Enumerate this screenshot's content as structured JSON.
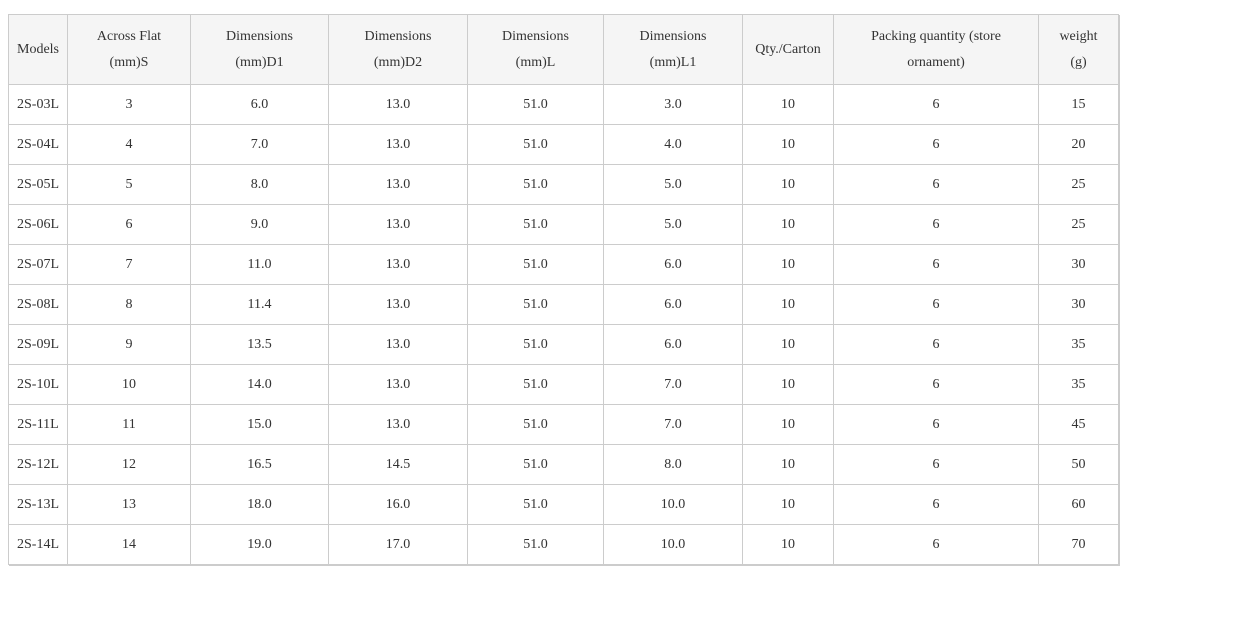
{
  "colors": {
    "header_bg": "#f5f5f5",
    "border": "#cccccc",
    "text": "#333333",
    "page_bg": "#ffffff"
  },
  "table": {
    "columns": [
      {
        "id": "model",
        "label": "Models",
        "label_lines": [
          "Models"
        ]
      },
      {
        "id": "s",
        "label": "Across Flat (mm)S",
        "label_lines": [
          "Across Flat",
          "(mm)S"
        ]
      },
      {
        "id": "d1",
        "label": "Dimensions (mm)D1",
        "label_lines": [
          "Dimensions",
          "(mm)D1"
        ]
      },
      {
        "id": "d2",
        "label": "Dimensions (mm)D2",
        "label_lines": [
          "Dimensions",
          "(mm)D2"
        ]
      },
      {
        "id": "l",
        "label": "Dimensions (mm)L",
        "label_lines": [
          "Dimensions",
          "(mm)L"
        ]
      },
      {
        "id": "l1",
        "label": "Dimensions (mm)L1",
        "label_lines": [
          "Dimensions",
          "(mm)L1"
        ]
      },
      {
        "id": "qty",
        "label": "Qty./Carton",
        "label_lines": [
          "Qty./Carton"
        ]
      },
      {
        "id": "pack",
        "label": "Packing quantity (store ornament)",
        "label_lines": [
          "Packing quantity (store",
          "ornament)"
        ]
      },
      {
        "id": "weight",
        "label": "weight (g)",
        "label_lines": [
          "weight",
          "(g)"
        ]
      }
    ],
    "rows": [
      [
        "2S-03L",
        "3",
        "6.0",
        "13.0",
        "51.0",
        "3.0",
        "10",
        "6",
        "15"
      ],
      [
        "2S-04L",
        "4",
        "7.0",
        "13.0",
        "51.0",
        "4.0",
        "10",
        "6",
        "20"
      ],
      [
        "2S-05L",
        "5",
        "8.0",
        "13.0",
        "51.0",
        "5.0",
        "10",
        "6",
        "25"
      ],
      [
        "2S-06L",
        "6",
        "9.0",
        "13.0",
        "51.0",
        "5.0",
        "10",
        "6",
        "25"
      ],
      [
        "2S-07L",
        "7",
        "11.0",
        "13.0",
        "51.0",
        "6.0",
        "10",
        "6",
        "30"
      ],
      [
        "2S-08L",
        "8",
        "11.4",
        "13.0",
        "51.0",
        "6.0",
        "10",
        "6",
        "30"
      ],
      [
        "2S-09L",
        "9",
        "13.5",
        "13.0",
        "51.0",
        "6.0",
        "10",
        "6",
        "35"
      ],
      [
        "2S-10L",
        "10",
        "14.0",
        "13.0",
        "51.0",
        "7.0",
        "10",
        "6",
        "35"
      ],
      [
        "2S-11L",
        "11",
        "15.0",
        "13.0",
        "51.0",
        "7.0",
        "10",
        "6",
        "45"
      ],
      [
        "2S-12L",
        "12",
        "16.5",
        "14.5",
        "51.0",
        "8.0",
        "10",
        "6",
        "50"
      ],
      [
        "2S-13L",
        "13",
        "18.0",
        "16.0",
        "51.0",
        "10.0",
        "10",
        "6",
        "60"
      ],
      [
        "2S-14L",
        "14",
        "19.0",
        "17.0",
        "51.0",
        "10.0",
        "10",
        "6",
        "70"
      ]
    ]
  }
}
